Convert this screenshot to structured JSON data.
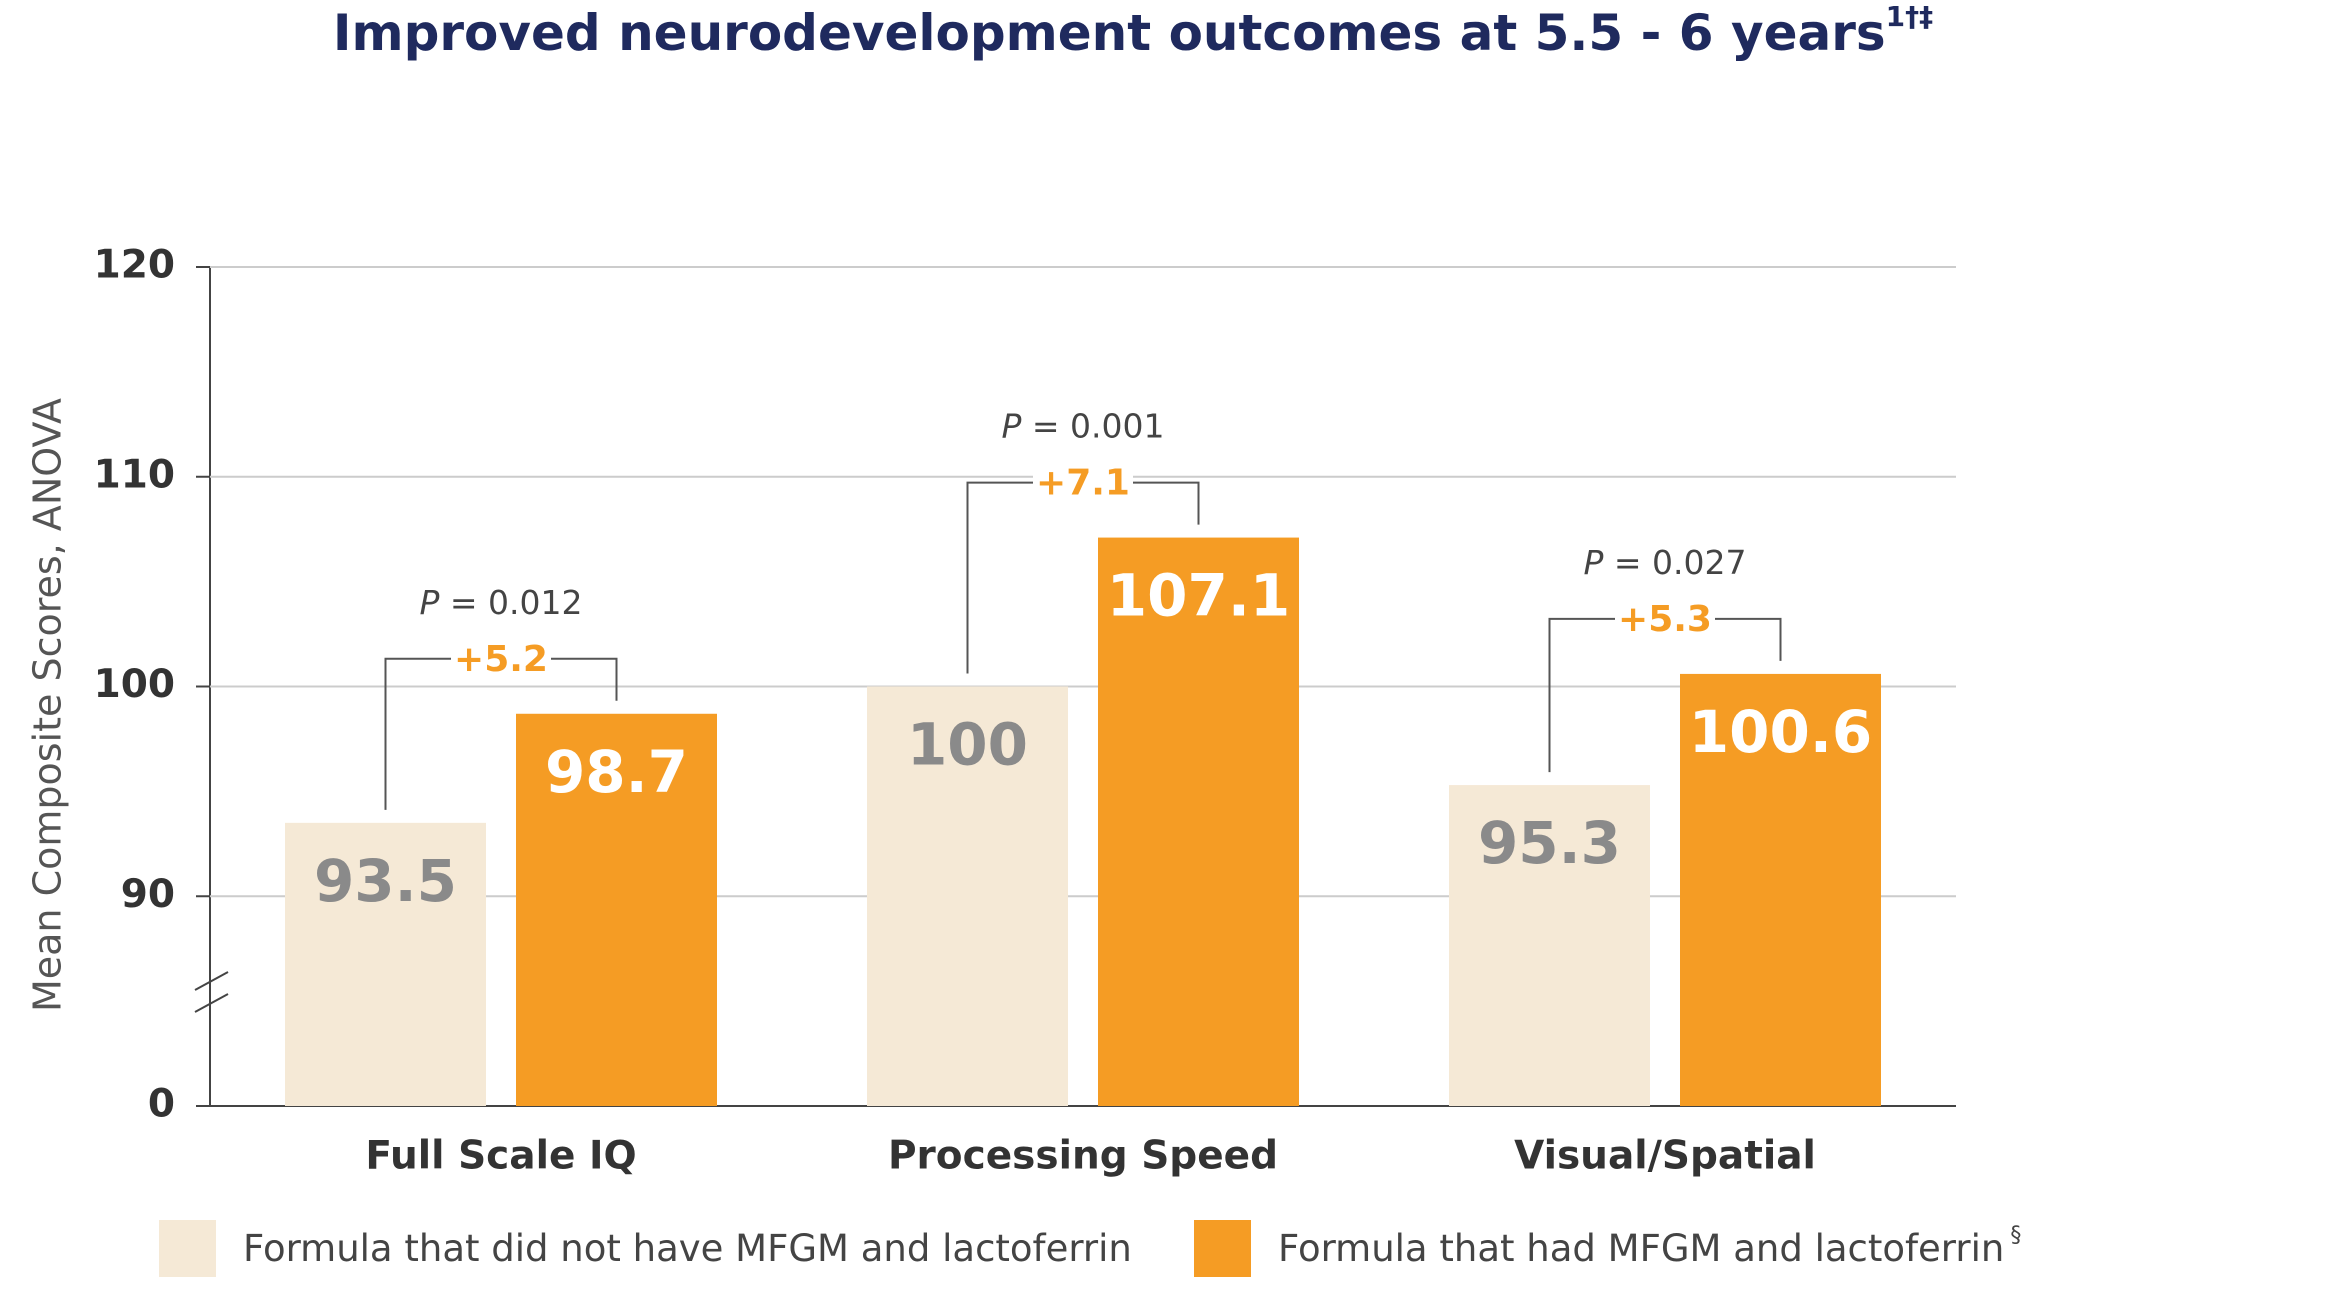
{
  "chart_data": {
    "type": "bar",
    "title": "Improved neurodevelopment outcomes at 5.5 - 6 years",
    "title_superscript": "1†‡",
    "y_axis_label": "Mean Composite Scores, ANOVA",
    "categories": [
      "Full Scale IQ",
      "Processing Speed",
      "Visual/Spatial"
    ],
    "series": [
      {
        "name": "Formula that did not have MFGM and lactoferrin",
        "color": "#f5e9d6",
        "label_color": "#8a8a8a",
        "values": [
          93.5,
          100,
          95.3
        ]
      },
      {
        "name": "Formula that had MFGM and lactoferrin",
        "name_superscript": "§",
        "color": "#f59c24",
        "label_color": "#ffffff",
        "values": [
          98.7,
          107.1,
          100.6
        ]
      }
    ],
    "annotations": [
      {
        "p": "P",
        "p_text": " = 0.012",
        "diff": "+5.2"
      },
      {
        "p": "P",
        "p_text": " = 0.001",
        "diff": "+7.1"
      },
      {
        "p": "P",
        "p_text": " = 0.027",
        "diff": "+5.3"
      }
    ],
    "ylim": [
      0,
      120
    ],
    "yticks": [
      0,
      90,
      100,
      110,
      120
    ],
    "broken_axis": true,
    "grid": true
  }
}
